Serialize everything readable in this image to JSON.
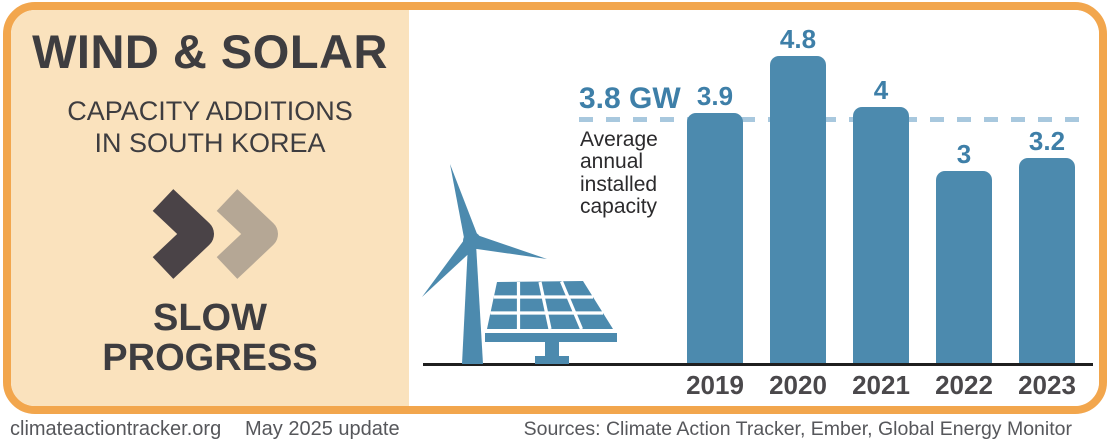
{
  "left_panel": {
    "title": "WIND & SOLAR",
    "subtitle_line1": "CAPACITY ADDITIONS",
    "subtitle_line2": "IN SOUTH KOREA",
    "tagline_line1": "SLOW",
    "tagline_line2": "PROGRESS",
    "icons": [
      "dark-chevron-right",
      "light-chevron-right"
    ]
  },
  "chart_data": {
    "type": "bar",
    "title": "Wind & solar capacity additions in South Korea",
    "categories": [
      "2019",
      "2020",
      "2021",
      "2022",
      "2023"
    ],
    "values": [
      3.9,
      4.8,
      4,
      3,
      3.2
    ],
    "value_labels": [
      "3.9",
      "4.8",
      "4",
      "3",
      "3.2"
    ],
    "unit": "GW",
    "ylim": [
      0,
      4.8
    ],
    "grid": false,
    "average_line": {
      "value": 3.8,
      "label": "3.8 GW",
      "description_lines": [
        "Average",
        "annual",
        "installed",
        "capacity"
      ],
      "style": "dashed"
    },
    "bar_color": "#4C8AAE",
    "avg_line_color": "#A8C8DE",
    "value_label_color": "#3E7FA8",
    "axis_color": "#1F1F1F"
  },
  "illustration": {
    "items": [
      "wind-turbine",
      "solar-panel"
    ],
    "color": "#4C8AAE"
  },
  "footer": {
    "site": "climateactiontracker.org",
    "update": "May 2025 update",
    "sources": "Sources: Climate Action Tracker, Ember, Global Energy Monitor"
  },
  "colors": {
    "border_orange": "#F2A64D",
    "panel_peach": "#FAE2BD",
    "headline_dark": "#3E3D40",
    "chevron_dark": "#4A4347",
    "chevron_light": "#B5A795",
    "footer_gray": "#56575B"
  }
}
